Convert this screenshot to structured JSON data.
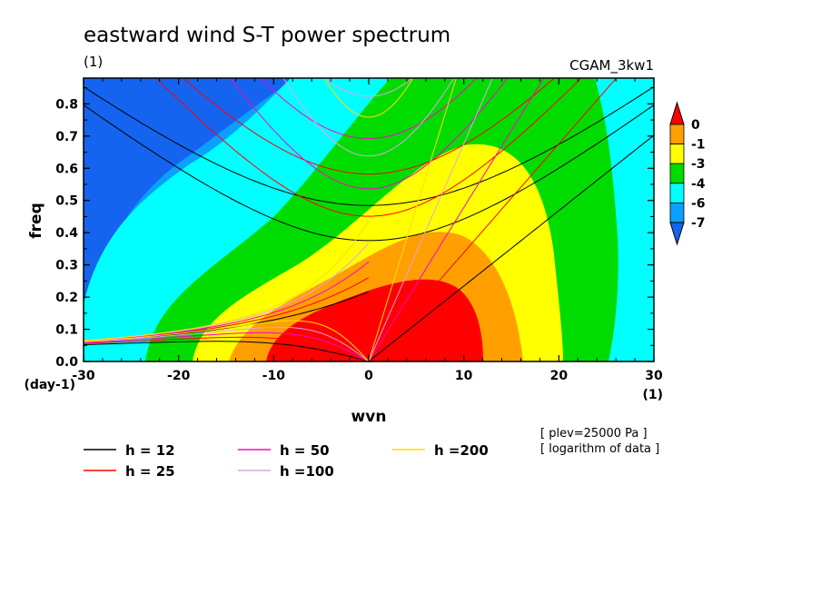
{
  "chart_data": {
    "type": "heatmap",
    "title": "eastward wind S-T power spectrum",
    "subtitle_left": "(1)",
    "subtitle_right": "CGAM_3kw1",
    "xlabel": "wvn",
    "ylabel": "freq",
    "x_unit_label": "(1)",
    "y_unit_label": "(day-1)",
    "xlim": [
      -30,
      30
    ],
    "ylim": [
      0,
      0.88
    ],
    "x_ticks": [
      "-30",
      "-20",
      "-10",
      "0",
      "10",
      "20",
      "30"
    ],
    "x_tick_values": [
      -30,
      -20,
      -10,
      0,
      10,
      20,
      30
    ],
    "y_ticks": [
      "0.0",
      "0.1",
      "0.2",
      "0.3",
      "0.4",
      "0.5",
      "0.6",
      "0.7",
      "0.8"
    ],
    "y_tick_values": [
      0,
      0.1,
      0.2,
      0.3,
      0.4,
      0.5,
      0.6,
      0.7,
      0.8
    ],
    "contour_levels": [
      -7,
      -6,
      -4,
      -3,
      -1,
      0
    ],
    "colorbar_labels": [
      "0",
      "-1",
      "-3",
      "-4",
      "-6",
      "-7"
    ],
    "colors": {
      "below_-7": "#1464f0",
      "-7_to_-6": "#0aa0ff",
      "-6_to_-4": "#00ffff",
      "-4_to_-3": "#00dc00",
      "-3_to_-1": "#ffff00",
      "-1_to_0": "#ffa000",
      "above_0": "#ff0000"
    },
    "dispersion_curves": [
      {
        "name": "h = 12",
        "equivalent_depth_m": 12,
        "color": "#000000"
      },
      {
        "name": "h = 25",
        "equivalent_depth_m": 25,
        "color": "#ff0000"
      },
      {
        "name": "h = 50",
        "equivalent_depth_m": 50,
        "color": "#ff00c8"
      },
      {
        "name": "h =100",
        "equivalent_depth_m": 100,
        "color": "#e6a0e6"
      },
      {
        "name": "h =200",
        "equivalent_depth_m": 200,
        "color": "#ffdc00"
      }
    ],
    "notes": [
      "[ plev=25000 Pa ]",
      "[ logarithm of data ]"
    ]
  }
}
